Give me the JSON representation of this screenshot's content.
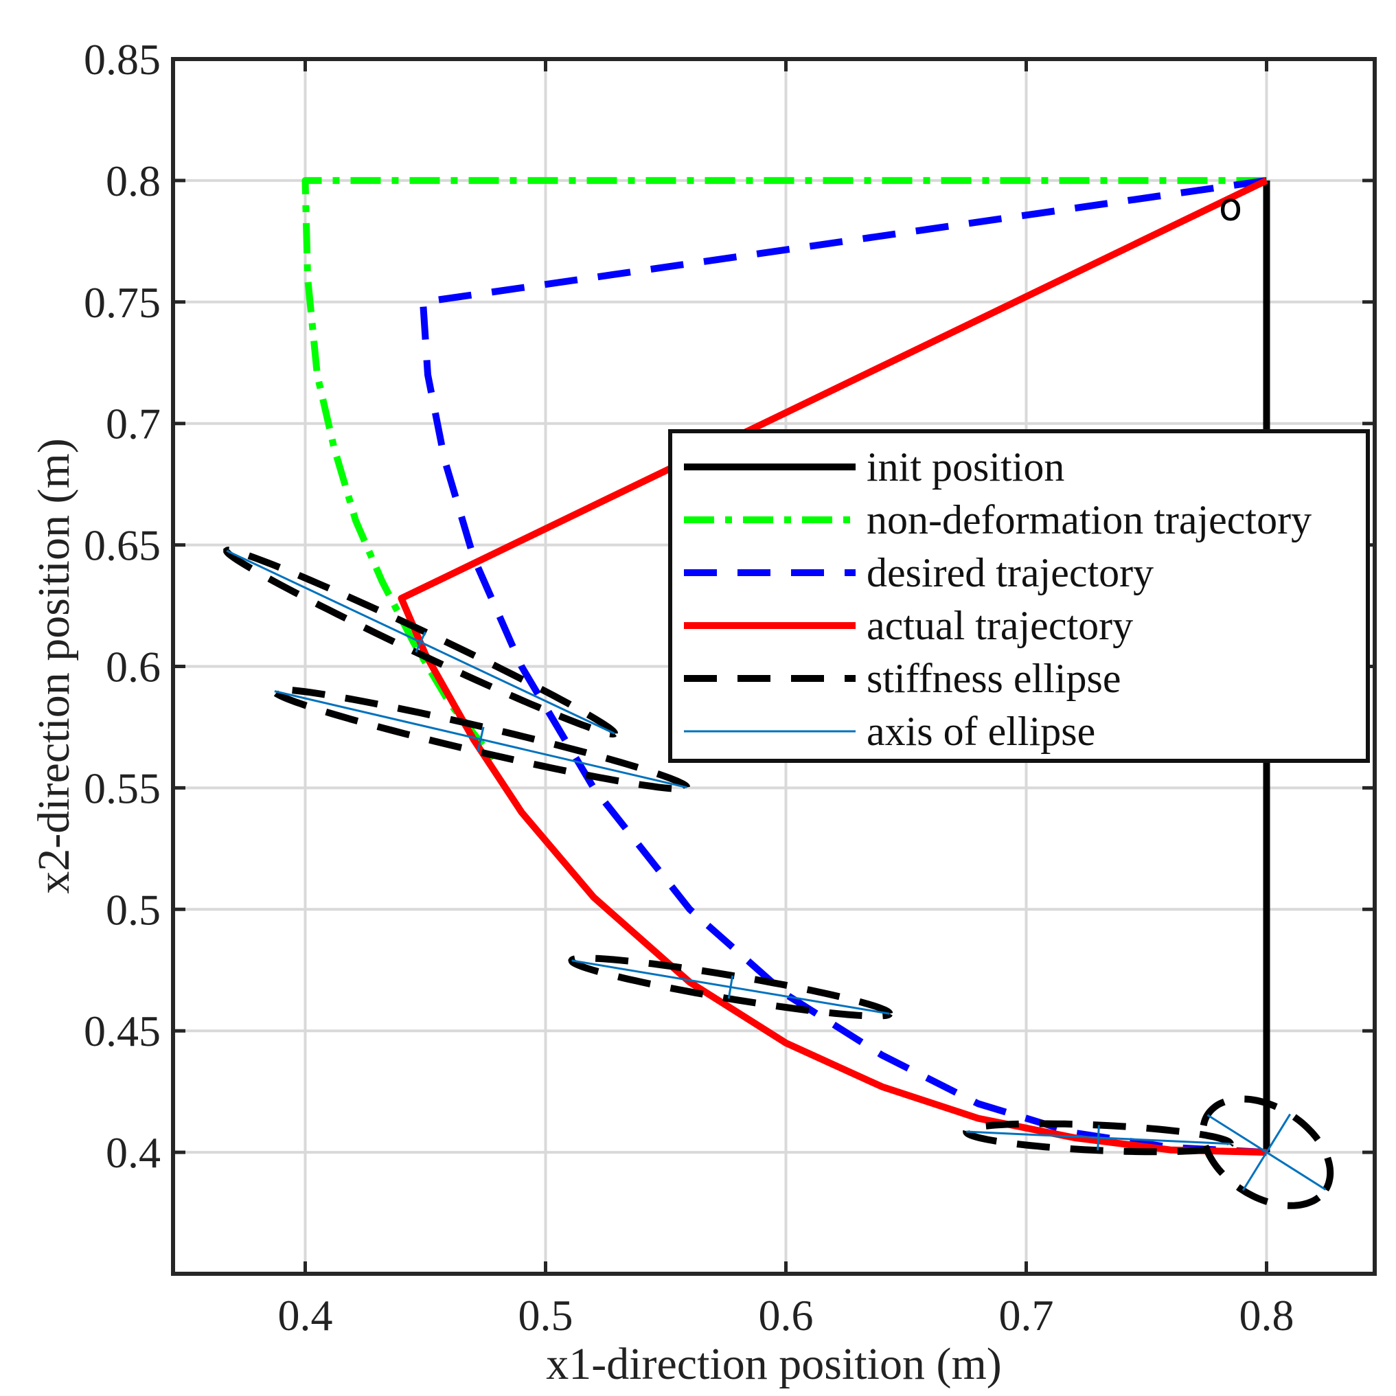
{
  "chart_data": {
    "type": "line",
    "title": "",
    "xlabel": "x1-direction position (m)",
    "ylabel": "x2-direction position (m)",
    "xlim": [
      0.345,
      0.845
    ],
    "ylim": [
      0.35,
      0.85
    ],
    "xticks": [
      0.4,
      0.5,
      0.6,
      0.7,
      0.8
    ],
    "yticks": [
      0.4,
      0.45,
      0.5,
      0.55,
      0.6,
      0.65,
      0.7,
      0.75,
      0.8,
      0.85
    ],
    "xtick_labels": [
      "0.4",
      "0.5",
      "0.6",
      "0.7",
      "0.8"
    ],
    "ytick_labels": [
      "0.4",
      "0.45",
      "0.5",
      "0.55",
      "0.6",
      "0.65",
      "0.7",
      "0.75",
      "0.8",
      "0.85"
    ],
    "grid": true,
    "legend_position": "center-right",
    "annotation": {
      "text": "o",
      "x": 0.785,
      "y": 0.79
    },
    "series": [
      {
        "name": "init position",
        "color": "#000000",
        "style": "solid",
        "x": [
          0.8,
          0.8
        ],
        "y": [
          0.8,
          0.4
        ]
      },
      {
        "name": "non-deformation trajectory",
        "color": "#00ff00",
        "style": "dashdot",
        "x": [
          0.8,
          0.4,
          0.401,
          0.405,
          0.412,
          0.421,
          0.432,
          0.445,
          0.46,
          0.48
        ],
        "y": [
          0.8,
          0.8,
          0.76,
          0.72,
          0.69,
          0.66,
          0.635,
          0.61,
          0.585,
          0.56
        ]
      },
      {
        "name": "desired trajectory",
        "color": "#0000ff",
        "style": "dashed",
        "x": [
          0.8,
          0.449,
          0.451,
          0.458,
          0.47,
          0.49,
          0.52,
          0.56,
          0.6,
          0.64,
          0.68,
          0.72,
          0.76,
          0.8
        ],
        "y": [
          0.8,
          0.75,
          0.72,
          0.685,
          0.645,
          0.6,
          0.55,
          0.5,
          0.465,
          0.44,
          0.42,
          0.408,
          0.402,
          0.4
        ]
      },
      {
        "name": "actual trajectory",
        "color": "#ff0000",
        "style": "solid",
        "x": [
          0.8,
          0.44,
          0.45,
          0.47,
          0.49,
          0.52,
          0.56,
          0.6,
          0.64,
          0.68,
          0.72,
          0.76,
          0.8
        ],
        "y": [
          0.8,
          0.628,
          0.605,
          0.57,
          0.54,
          0.505,
          0.47,
          0.445,
          0.427,
          0.414,
          0.406,
          0.401,
          0.4
        ]
      },
      {
        "name": "stiffness ellipse",
        "color": "#000000",
        "style": "dashed",
        "ellipses": [
          {
            "cx": 0.448,
            "cy": 0.61,
            "a": 0.089,
            "b": 0.0046,
            "angle_deg": -25
          },
          {
            "cx": 0.473,
            "cy": 0.57,
            "a": 0.088,
            "b": 0.0052,
            "angle_deg": -13
          },
          {
            "cx": 0.577,
            "cy": 0.468,
            "a": 0.067,
            "b": 0.0048,
            "angle_deg": -9.4
          },
          {
            "cx": 0.73,
            "cy": 0.406,
            "a": 0.055,
            "b": 0.0052,
            "angle_deg": -2.6
          },
          {
            "cx": 0.8,
            "cy": 0.4,
            "a": 0.029,
            "b": 0.0185,
            "angle_deg": -32
          }
        ]
      },
      {
        "name": "axis of ellipse",
        "color": "#0072bd",
        "style": "solid-thin",
        "ellipse_ref": "stiffness ellipse"
      }
    ]
  }
}
